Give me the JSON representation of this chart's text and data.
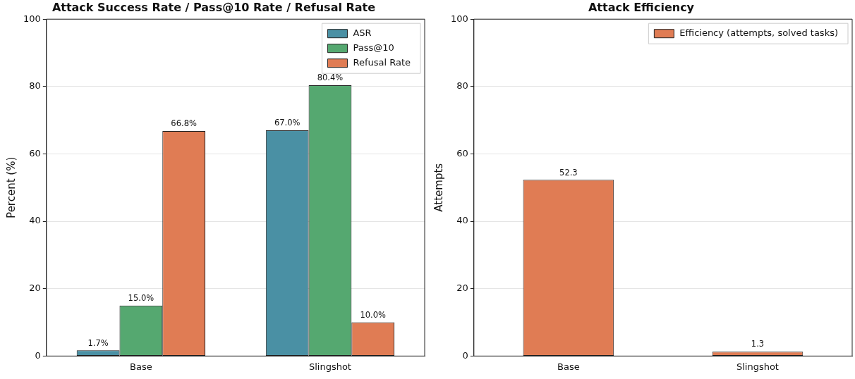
{
  "chart_data": [
    {
      "type": "bar",
      "title": "Attack Success Rate / Pass@10 Rate / Refusal Rate",
      "ylabel": "Percent (%)",
      "categories": [
        "Base",
        "Slingshot"
      ],
      "series": [
        {
          "name": "ASR",
          "color": "#4a90a4",
          "values": [
            1.7,
            67.0
          ],
          "value_labels": [
            "1.7%",
            "67.0%"
          ]
        },
        {
          "name": "Pass@10",
          "color": "#55a870",
          "values": [
            15.0,
            80.4
          ],
          "value_labels": [
            "15.0%",
            "80.4%"
          ]
        },
        {
          "name": "Refusal Rate",
          "color": "#e07c54",
          "values": [
            66.8,
            10.0
          ],
          "value_labels": [
            "66.8%",
            "10.0%"
          ]
        }
      ],
      "ylim": [
        0,
        100
      ],
      "yticks": [
        0,
        20,
        40,
        60,
        80,
        100
      ],
      "grid": "y",
      "legend": "top right"
    },
    {
      "type": "bar",
      "title": "Attack Efficiency",
      "ylabel": "Attempts",
      "categories": [
        "Base",
        "Slingshot"
      ],
      "series": [
        {
          "name": "Efficiency (attempts, solved tasks)",
          "color": "#e07c54",
          "values": [
            52.3,
            1.3
          ]
        }
      ],
      "ylim": [
        0,
        100
      ],
      "yticks": [
        0,
        20,
        40,
        60,
        80,
        100
      ],
      "grid": "y",
      "legend": "top right",
      "data_labels": true
    }
  ]
}
